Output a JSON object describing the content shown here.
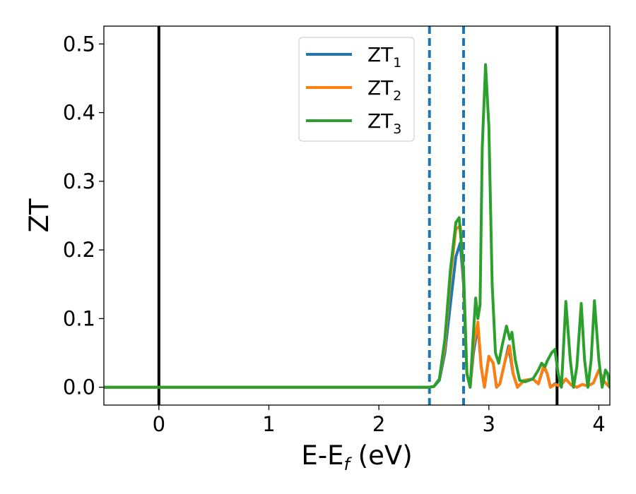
{
  "chart_data": {
    "type": "line",
    "xlabel": "E-E",
    "xlabel_sub": "f",
    "xlabel_unit": " (eV)",
    "ylabel": "ZT",
    "xlim": [
      -0.5,
      4.1
    ],
    "ylim": [
      -0.026,
      0.526
    ],
    "xticks": [
      0,
      1,
      2,
      3,
      4
    ],
    "xtick_labels": [
      "0",
      "1",
      "2",
      "3",
      "4"
    ],
    "yticks": [
      0.0,
      0.1,
      0.2,
      0.3,
      0.4,
      0.5
    ],
    "ytick_labels": [
      "0.0",
      "0.1",
      "0.2",
      "0.3",
      "0.4",
      "0.5"
    ],
    "grid": false,
    "legend_placement": "top-center",
    "vlines": [
      {
        "x": 0.0,
        "style": "solid",
        "color": "#000000"
      },
      {
        "x": 3.62,
        "style": "solid",
        "color": "#000000"
      },
      {
        "x": 2.46,
        "style": "dashed",
        "color": "#1f77b4"
      },
      {
        "x": 2.77,
        "style": "dashed",
        "color": "#1f77b4"
      }
    ],
    "series": [
      {
        "name": "ZT",
        "sub": "1",
        "color": "#1f77b4",
        "points": [
          [
            -0.5,
            0
          ],
          [
            2.45,
            0
          ],
          [
            2.5,
            0.001
          ],
          [
            2.55,
            0.01
          ],
          [
            2.6,
            0.05
          ],
          [
            2.65,
            0.12
          ],
          [
            2.7,
            0.19
          ],
          [
            2.74,
            0.21
          ],
          [
            2.77,
            0.15
          ],
          [
            2.8,
            0.02
          ],
          [
            2.83,
            0.0
          ],
          [
            2.86,
            0.05
          ],
          [
            2.9,
            0.09
          ],
          [
            2.93,
            0.03
          ],
          [
            2.96,
            0.0
          ],
          [
            3.0,
            0.045
          ],
          [
            3.04,
            0.035
          ],
          [
            3.07,
            0.0
          ],
          [
            3.1,
            0.005
          ],
          [
            3.15,
            0.04
          ],
          [
            3.18,
            0.06
          ],
          [
            3.22,
            0.02
          ],
          [
            3.26,
            0.0
          ],
          [
            3.32,
            0.01
          ],
          [
            3.4,
            0.012
          ],
          [
            3.45,
            0.005
          ],
          [
            3.5,
            0.03
          ],
          [
            3.53,
            0.02
          ],
          [
            3.56,
            0.0
          ],
          [
            3.6,
            0.005
          ],
          [
            3.65,
            0.002
          ],
          [
            3.7,
            0.012
          ],
          [
            3.75,
            0.003
          ],
          [
            3.8,
            0.0
          ],
          [
            3.85,
            0.004
          ],
          [
            3.9,
            0.002
          ],
          [
            3.95,
            0.006
          ],
          [
            4.0,
            0.025
          ],
          [
            4.05,
            0.008
          ],
          [
            4.1,
            0.0
          ]
        ]
      },
      {
        "name": "ZT",
        "sub": "2",
        "color": "#ff7f0e",
        "points": [
          [
            -0.5,
            0
          ],
          [
            2.45,
            0
          ],
          [
            2.5,
            0.001
          ],
          [
            2.55,
            0.012
          ],
          [
            2.6,
            0.06
          ],
          [
            2.65,
            0.16
          ],
          [
            2.7,
            0.23
          ],
          [
            2.74,
            0.235
          ],
          [
            2.77,
            0.16
          ],
          [
            2.8,
            0.02
          ],
          [
            2.83,
            0.0
          ],
          [
            2.86,
            0.06
          ],
          [
            2.9,
            0.095
          ],
          [
            2.93,
            0.03
          ],
          [
            2.96,
            0.0
          ],
          [
            3.0,
            0.045
          ],
          [
            3.04,
            0.035
          ],
          [
            3.07,
            0.0
          ],
          [
            3.1,
            0.005
          ],
          [
            3.15,
            0.04
          ],
          [
            3.19,
            0.06
          ],
          [
            3.22,
            0.02
          ],
          [
            3.26,
            0.0
          ],
          [
            3.32,
            0.01
          ],
          [
            3.4,
            0.012
          ],
          [
            3.45,
            0.005
          ],
          [
            3.5,
            0.032
          ],
          [
            3.53,
            0.02
          ],
          [
            3.56,
            0.0
          ],
          [
            3.6,
            0.004
          ],
          [
            3.65,
            0.002
          ],
          [
            3.7,
            0.012
          ],
          [
            3.75,
            0.003
          ],
          [
            3.8,
            0.0
          ],
          [
            3.85,
            0.004
          ],
          [
            3.9,
            0.002
          ],
          [
            3.95,
            0.006
          ],
          [
            4.0,
            0.025
          ],
          [
            4.05,
            0.008
          ],
          [
            4.1,
            0.0
          ]
        ]
      },
      {
        "name": "ZT",
        "sub": "3",
        "color": "#2ca02c",
        "points": [
          [
            -0.5,
            0
          ],
          [
            2.45,
            0
          ],
          [
            2.5,
            0.001
          ],
          [
            2.55,
            0.012
          ],
          [
            2.6,
            0.07
          ],
          [
            2.65,
            0.17
          ],
          [
            2.7,
            0.24
          ],
          [
            2.73,
            0.247
          ],
          [
            2.77,
            0.17
          ],
          [
            2.8,
            0.02
          ],
          [
            2.83,
            0.0
          ],
          [
            2.86,
            0.08
          ],
          [
            2.88,
            0.13
          ],
          [
            2.9,
            0.1
          ],
          [
            2.92,
            0.12
          ],
          [
            2.94,
            0.35
          ],
          [
            2.97,
            0.47
          ],
          [
            3.0,
            0.38
          ],
          [
            3.03,
            0.15
          ],
          [
            3.06,
            0.05
          ],
          [
            3.09,
            0.035
          ],
          [
            3.12,
            0.06
          ],
          [
            3.16,
            0.089
          ],
          [
            3.19,
            0.07
          ],
          [
            3.21,
            0.08
          ],
          [
            3.24,
            0.04
          ],
          [
            3.28,
            0.01
          ],
          [
            3.33,
            0.008
          ],
          [
            3.4,
            0.012
          ],
          [
            3.45,
            0.025
          ],
          [
            3.48,
            0.035
          ],
          [
            3.51,
            0.03
          ],
          [
            3.53,
            0.038
          ],
          [
            3.57,
            0.05
          ],
          [
            3.6,
            0.055
          ],
          [
            3.63,
            0.02
          ],
          [
            3.66,
            0.0
          ],
          [
            3.7,
            0.125
          ],
          [
            3.74,
            0.04
          ],
          [
            3.77,
            0.0
          ],
          [
            3.8,
            0.03
          ],
          [
            3.84,
            0.122
          ],
          [
            3.87,
            0.04
          ],
          [
            3.9,
            0.0
          ],
          [
            3.93,
            0.04
          ],
          [
            3.96,
            0.126
          ],
          [
            4.0,
            0.04
          ],
          [
            4.03,
            0.0
          ],
          [
            4.06,
            0.025
          ],
          [
            4.08,
            0.02
          ],
          [
            4.1,
            0.0
          ]
        ]
      }
    ]
  }
}
